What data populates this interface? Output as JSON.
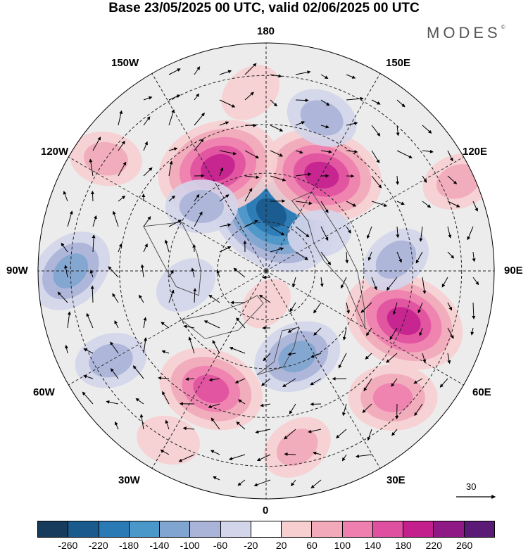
{
  "title": "Base 23/05/2025 00 UTC, valid 02/06/2025 00 UTC",
  "brand": "MODES",
  "brand_mark": "©",
  "longitude_labels": {
    "top": "180",
    "bottom": "0",
    "left": "90W",
    "right": "90E",
    "upper_left_1": "150W",
    "upper_left_2": "120W",
    "upper_right_1": "150E",
    "upper_right_2": "120E",
    "lower_left_1": "60W",
    "lower_left_2": "30W",
    "lower_right_1": "60E",
    "lower_right_2": "30E"
  },
  "reference_vector": {
    "value": "30"
  },
  "colorbar": {
    "ticks": [
      "-260",
      "-220",
      "-180",
      "-140",
      "-100",
      "-60",
      "-20",
      "20",
      "60",
      "100",
      "140",
      "180",
      "220",
      "260"
    ],
    "colors": [
      "#163b5c",
      "#1a5a8c",
      "#2a7ab5",
      "#4a97c9",
      "#7fa5d0",
      "#aab4d8",
      "#d3d5ea",
      "#ffffff",
      "#f7cfd1",
      "#f2a9b9",
      "#ee7fae",
      "#e050a0",
      "#c4208d",
      "#8f1a86",
      "#5a1a76"
    ]
  },
  "map_colors": {
    "disk": "#ececec",
    "grid": "#222222",
    "coast": "#444444",
    "arrow": "#000000"
  },
  "anomalies": [
    {
      "lon": 175,
      "lat": 72,
      "value": -220
    },
    {
      "lon": 150,
      "lat": 56,
      "value": 180
    },
    {
      "lon": 205,
      "lat": 55,
      "value": 180
    },
    {
      "lon": 160,
      "lat": 40,
      "value": -60
    },
    {
      "lon": 235,
      "lat": 30,
      "value": 60
    },
    {
      "lon": 270,
      "lat": 30,
      "value": -100
    },
    {
      "lon": 115,
      "lat": 25,
      "value": 60
    },
    {
      "lon": 70,
      "lat": 45,
      "value": 180
    },
    {
      "lon": 45,
      "lat": 35,
      "value": 100
    },
    {
      "lon": 335,
      "lat": 50,
      "value": 140
    },
    {
      "lon": 20,
      "lat": 62,
      "value": -100
    },
    {
      "lon": 10,
      "lat": 35,
      "value": 60
    },
    {
      "lon": 225,
      "lat": 62,
      "value": -60
    },
    {
      "lon": 300,
      "lat": 35,
      "value": -60
    },
    {
      "lon": 95,
      "lat": 50,
      "value": -60
    },
    {
      "lon": 125,
      "lat": 70,
      "value": -40
    },
    {
      "lon": 280,
      "lat": 65,
      "value": -40
    },
    {
      "lon": 0,
      "lat": 80,
      "value": 20
    },
    {
      "lon": 330,
      "lat": 30,
      "value": 40
    },
    {
      "lon": 185,
      "lat": 35,
      "value": 40
    }
  ]
}
